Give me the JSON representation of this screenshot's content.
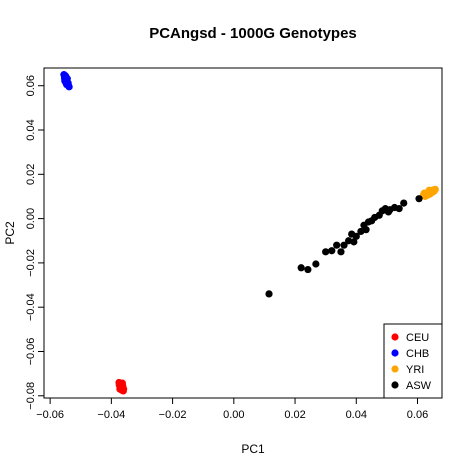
{
  "chart_data": {
    "type": "scatter",
    "title": "PCAngsd - 1000G Genotypes",
    "xlabel": "PC1",
    "ylabel": "PC2",
    "xlim": [
      -0.062,
      0.068
    ],
    "ylim": [
      -0.081,
      0.068
    ],
    "xticks": [
      -0.06,
      -0.04,
      -0.02,
      0.0,
      0.02,
      0.04,
      0.06
    ],
    "xtick_labels": [
      "−0.06",
      "−0.04",
      "−0.02",
      "0.00",
      "0.02",
      "0.04",
      "0.06"
    ],
    "yticks": [
      -0.08,
      -0.06,
      -0.04,
      -0.02,
      0.0,
      0.02,
      0.04,
      0.06
    ],
    "ytick_labels": [
      "−0.08",
      "−0.06",
      "−0.04",
      "−0.02",
      "0.00",
      "0.02",
      "0.04",
      "0.06"
    ],
    "grid": false,
    "legend_position": "bottom-right",
    "series": [
      {
        "name": "CEU",
        "color": "#ff0000",
        "points": [
          [
            -0.0375,
            -0.074
          ],
          [
            -0.0372,
            -0.0745
          ],
          [
            -0.0368,
            -0.075
          ],
          [
            -0.0363,
            -0.0755
          ],
          [
            -0.037,
            -0.076
          ],
          [
            -0.0365,
            -0.0765
          ],
          [
            -0.036,
            -0.077
          ],
          [
            -0.0372,
            -0.077
          ],
          [
            -0.0366,
            -0.0775
          ],
          [
            -0.0361,
            -0.0778
          ],
          [
            -0.0369,
            -0.0748
          ],
          [
            -0.0362,
            -0.0762
          ],
          [
            -0.0374,
            -0.0752
          ],
          [
            -0.0367,
            -0.0758
          ],
          [
            -0.0364,
            -0.0743
          ]
        ]
      },
      {
        "name": "CHB",
        "color": "#0000ff",
        "points": [
          [
            -0.0555,
            0.065
          ],
          [
            -0.055,
            0.0645
          ],
          [
            -0.0548,
            0.064
          ],
          [
            -0.0553,
            0.0635
          ],
          [
            -0.0547,
            0.063
          ],
          [
            -0.0551,
            0.0625
          ],
          [
            -0.0545,
            0.062
          ],
          [
            -0.0549,
            0.0615
          ],
          [
            -0.0543,
            0.061
          ],
          [
            -0.0546,
            0.0605
          ],
          [
            -0.054,
            0.06
          ],
          [
            -0.0538,
            0.0595
          ],
          [
            -0.0552,
            0.0622
          ],
          [
            -0.0544,
            0.0632
          ],
          [
            -0.0541,
            0.0612
          ]
        ]
      },
      {
        "name": "YRI",
        "color": "#ffa500",
        "points": [
          [
            0.062,
            0.0108
          ],
          [
            0.0628,
            0.0112
          ],
          [
            0.0635,
            0.0118
          ],
          [
            0.0642,
            0.0123
          ],
          [
            0.0648,
            0.0127
          ],
          [
            0.0652,
            0.013
          ],
          [
            0.064,
            0.011
          ],
          [
            0.0632,
            0.0105
          ],
          [
            0.0645,
            0.0116
          ],
          [
            0.0655,
            0.0125
          ],
          [
            0.0625,
            0.01
          ],
          [
            0.065,
            0.012
          ],
          [
            0.0638,
            0.0128
          ],
          [
            0.0658,
            0.0132
          ],
          [
            0.0622,
            0.0115
          ]
        ]
      },
      {
        "name": "ASW",
        "color": "#000000",
        "points": [
          [
            0.0115,
            -0.034
          ],
          [
            0.022,
            -0.0222
          ],
          [
            0.0242,
            -0.023
          ],
          [
            0.0268,
            -0.0205
          ],
          [
            0.03,
            -0.015
          ],
          [
            0.032,
            -0.0145
          ],
          [
            0.0336,
            -0.012
          ],
          [
            0.035,
            -0.015
          ],
          [
            0.036,
            -0.012
          ],
          [
            0.0375,
            -0.01
          ],
          [
            0.0385,
            -0.007
          ],
          [
            0.0392,
            -0.0105
          ],
          [
            0.04,
            -0.008
          ],
          [
            0.0415,
            -0.0058
          ],
          [
            0.0425,
            -0.003
          ],
          [
            0.0432,
            -0.005
          ],
          [
            0.044,
            -0.0015
          ],
          [
            0.045,
            -0.001
          ],
          [
            0.046,
            0.0005
          ],
          [
            0.0475,
            0.0015
          ],
          [
            0.0485,
            0.0035
          ],
          [
            0.0495,
            0.0045
          ],
          [
            0.0505,
            0.003
          ],
          [
            0.051,
            0.004
          ],
          [
            0.0525,
            0.005
          ],
          [
            0.054,
            0.0045
          ],
          [
            0.0555,
            0.007
          ],
          [
            0.0605,
            0.009
          ]
        ]
      }
    ]
  }
}
